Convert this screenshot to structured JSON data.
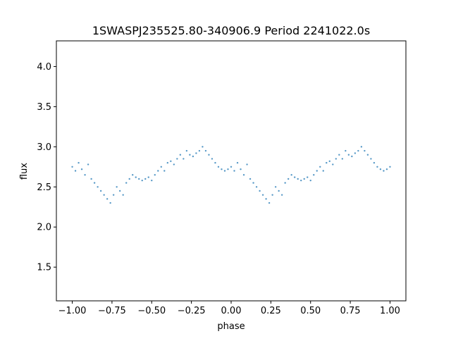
{
  "chart_data": {
    "type": "scatter",
    "title": "1SWASPJ235525.80-340906.9 Period 2241022.0s",
    "xlabel": "phase",
    "ylabel": "flux",
    "xlim": [
      -1.1,
      1.1
    ],
    "ylim": [
      1.08,
      4.32
    ],
    "xticks": [
      -1.0,
      -0.75,
      -0.5,
      -0.25,
      0.0,
      0.25,
      0.5,
      0.75,
      1.0
    ],
    "xtick_labels": [
      "−1.00",
      "−0.75",
      "−0.50",
      "−0.25",
      "0.00",
      "0.25",
      "0.50",
      "0.75",
      "1.00"
    ],
    "yticks": [
      1.5,
      2.0,
      2.5,
      3.0,
      3.5,
      4.0
    ],
    "ytick_labels": [
      "1.5",
      "2.0",
      "2.5",
      "3.0",
      "3.5",
      "4.0"
    ],
    "grid": false,
    "legend": "none",
    "marker_color": "#1f77b4",
    "series": [
      {
        "values_description": "",
        "points": [
          [
            -1.0,
            2.75
          ],
          [
            -0.98,
            2.7
          ],
          [
            -0.96,
            2.8
          ],
          [
            -0.94,
            2.72
          ],
          [
            -0.92,
            2.65
          ],
          [
            -0.9,
            2.78
          ],
          [
            -0.88,
            2.6
          ],
          [
            -0.86,
            2.55
          ],
          [
            -0.84,
            2.5
          ],
          [
            -0.82,
            2.45
          ],
          [
            -0.8,
            2.4
          ],
          [
            -0.78,
            2.35
          ],
          [
            -0.76,
            2.3
          ],
          [
            -0.74,
            2.4
          ],
          [
            -0.72,
            2.5
          ],
          [
            -0.7,
            2.45
          ],
          [
            -0.68,
            2.4
          ],
          [
            -0.66,
            2.55
          ],
          [
            -0.64,
            2.6
          ],
          [
            -0.62,
            2.65
          ],
          [
            -0.6,
            2.62
          ],
          [
            -0.58,
            2.6
          ],
          [
            -0.56,
            2.58
          ],
          [
            -0.54,
            2.6
          ],
          [
            -0.52,
            2.62
          ],
          [
            -0.5,
            2.58
          ],
          [
            -0.48,
            2.65
          ],
          [
            -0.46,
            2.7
          ],
          [
            -0.44,
            2.75
          ],
          [
            -0.42,
            2.7
          ],
          [
            -0.4,
            2.8
          ],
          [
            -0.38,
            2.82
          ],
          [
            -0.36,
            2.78
          ],
          [
            -0.34,
            2.85
          ],
          [
            -0.32,
            2.9
          ],
          [
            -0.3,
            2.85
          ],
          [
            -0.28,
            2.95
          ],
          [
            -0.26,
            2.9
          ],
          [
            -0.24,
            2.88
          ],
          [
            -0.22,
            2.92
          ],
          [
            -0.2,
            2.95
          ],
          [
            -0.18,
            3.0
          ],
          [
            -0.16,
            2.95
          ],
          [
            -0.14,
            2.9
          ],
          [
            -0.12,
            2.85
          ],
          [
            -0.1,
            2.8
          ],
          [
            -0.08,
            2.75
          ],
          [
            -0.06,
            2.72
          ],
          [
            -0.04,
            2.7
          ],
          [
            -0.02,
            2.72
          ],
          [
            0.0,
            2.75
          ],
          [
            0.02,
            2.7
          ],
          [
            0.04,
            2.8
          ],
          [
            0.06,
            2.72
          ],
          [
            0.08,
            2.65
          ],
          [
            0.1,
            2.78
          ],
          [
            0.12,
            2.6
          ],
          [
            0.14,
            2.55
          ],
          [
            0.16,
            2.5
          ],
          [
            0.18,
            2.45
          ],
          [
            0.2,
            2.4
          ],
          [
            0.22,
            2.35
          ],
          [
            0.24,
            2.3
          ],
          [
            0.26,
            2.4
          ],
          [
            0.28,
            2.5
          ],
          [
            0.3,
            2.45
          ],
          [
            0.32,
            2.4
          ],
          [
            0.34,
            2.55
          ],
          [
            0.36,
            2.6
          ],
          [
            0.38,
            2.65
          ],
          [
            0.4,
            2.62
          ],
          [
            0.42,
            2.6
          ],
          [
            0.44,
            2.58
          ],
          [
            0.46,
            2.6
          ],
          [
            0.48,
            2.62
          ],
          [
            0.5,
            2.58
          ],
          [
            0.52,
            2.65
          ],
          [
            0.54,
            2.7
          ],
          [
            0.56,
            2.75
          ],
          [
            0.58,
            2.7
          ],
          [
            0.6,
            2.8
          ],
          [
            0.62,
            2.82
          ],
          [
            0.64,
            2.78
          ],
          [
            0.66,
            2.85
          ],
          [
            0.68,
            2.9
          ],
          [
            0.7,
            2.85
          ],
          [
            0.72,
            2.95
          ],
          [
            0.74,
            2.9
          ],
          [
            0.76,
            2.88
          ],
          [
            0.78,
            2.92
          ],
          [
            0.8,
            2.95
          ],
          [
            0.82,
            3.0
          ],
          [
            0.84,
            2.95
          ],
          [
            0.86,
            2.9
          ],
          [
            0.88,
            2.85
          ],
          [
            0.9,
            2.8
          ],
          [
            0.92,
            2.75
          ],
          [
            0.94,
            2.72
          ],
          [
            0.96,
            2.7
          ],
          [
            0.98,
            2.72
          ],
          [
            1.0,
            2.75
          ]
        ]
      }
    ]
  }
}
